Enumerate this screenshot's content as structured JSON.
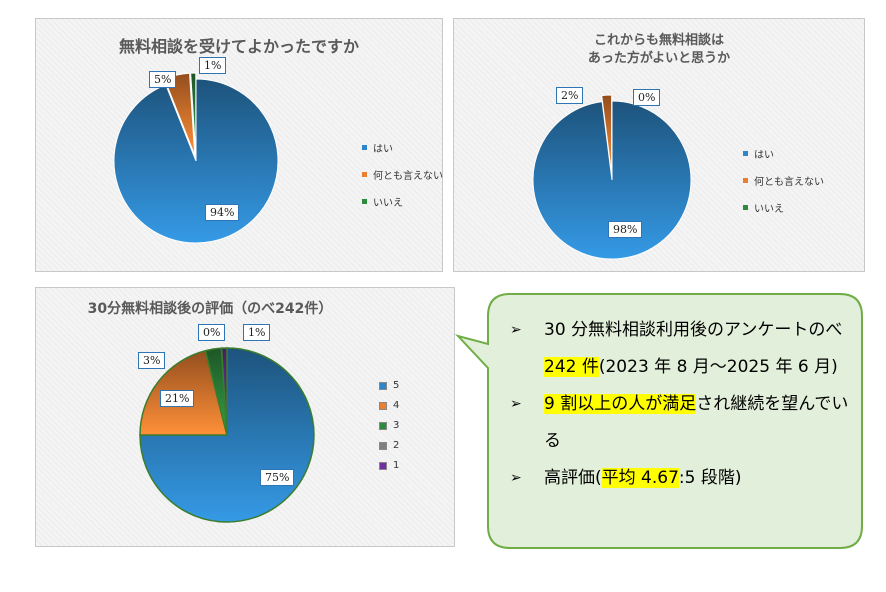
{
  "chart_data": [
    {
      "type": "pie",
      "title": "無料相談を受けてよかったですか",
      "categories": [
        "はい",
        "何とも言えない",
        "いいえ"
      ],
      "values": [
        94,
        5,
        1
      ],
      "data_labels": [
        "94%",
        "5%",
        "1%"
      ],
      "colors": [
        "#2e86c8",
        "#ed7d31",
        "#2e8b3e"
      ],
      "legend": "right"
    },
    {
      "type": "pie",
      "title": "これからも無料相談は\nあった方がよいと思うか",
      "title_lines": [
        "これからも無料相談は",
        "あった方がよいと思うか"
      ],
      "categories": [
        "はい",
        "何とも言えない",
        "いいえ"
      ],
      "values": [
        98,
        2,
        0
      ],
      "data_labels": [
        "98%",
        "2%",
        "0%"
      ],
      "colors": [
        "#2e86c8",
        "#ed7d31",
        "#2e8b3e"
      ],
      "legend": "right"
    },
    {
      "type": "pie",
      "title": "30分無料相談後の評価（のべ242件）",
      "categories": [
        "5",
        "4",
        "3",
        "2",
        "1"
      ],
      "values": [
        75,
        21,
        3,
        0,
        1
      ],
      "data_labels": [
        "75%",
        "21%",
        "3%",
        "0%",
        "1%"
      ],
      "colors": [
        "#2e86c8",
        "#ed7d31",
        "#2e8b3e",
        "#7f7f7f",
        "#7030a0"
      ],
      "legend": "right"
    }
  ],
  "callout": {
    "bullet_icon": "arrowhead-bullet-icon",
    "bullet_char": "➢",
    "border_color": "#70ad47",
    "fill_color": "#e2efda",
    "highlight_color": "#ffff00",
    "item1_pre": "30 分無料相談利用後のアンケートのべ ",
    "item1_hl": "242 件",
    "item1_post": "(2023 年 8 月～2025 年 6 月)",
    "item2_hl": "9 割以上の人が満足",
    "item2_post": "され継続を望んでいる",
    "item3_pre": "高評価(",
    "item3_hl": "平均 4.67",
    "item3_post": ":5 段階)"
  }
}
